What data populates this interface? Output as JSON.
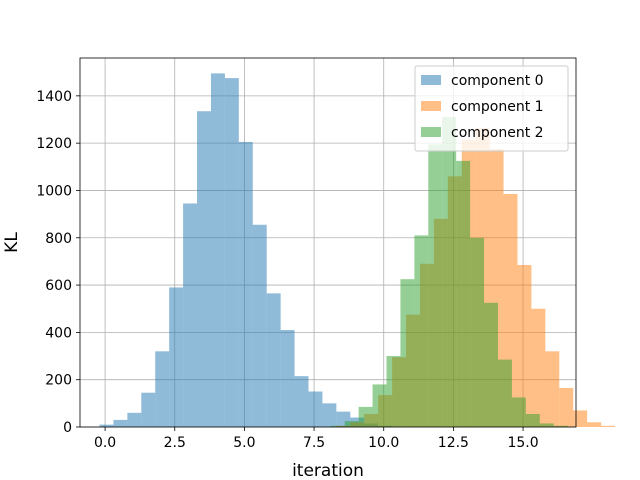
{
  "chart_data": {
    "type": "histogram",
    "xlabel": "iteration",
    "ylabel": "KL",
    "xlim": [
      -0.9,
      16.9
    ],
    "ylim": [
      0,
      1560
    ],
    "xticks": [
      0.0,
      2.5,
      5.0,
      7.5,
      10.0,
      12.5,
      15.0
    ],
    "xtick_labels": [
      "0.0",
      "2.5",
      "5.0",
      "7.5",
      "10.0",
      "12.5",
      "15.0"
    ],
    "yticks": [
      0,
      200,
      400,
      600,
      800,
      1000,
      1200,
      1400
    ],
    "ytick_labels": [
      "0",
      "200",
      "400",
      "600",
      "800",
      "1000",
      "1200",
      "1400"
    ],
    "grid": true,
    "legend_position": "top-right",
    "series": [
      {
        "name": "component 0",
        "color": "#1f77b4",
        "alpha": 0.5,
        "bin_start": -0.2,
        "bin_width": 0.5,
        "counts": [
          10,
          30,
          60,
          145,
          320,
          590,
          945,
          1335,
          1495,
          1475,
          1205,
          855,
          565,
          410,
          215,
          150,
          100,
          65,
          40,
          15,
          5,
          2
        ]
      },
      {
        "name": "component 1",
        "color": "#ff7f0e",
        "alpha": 0.5,
        "bin_start": 8.3,
        "bin_width": 0.5,
        "counts": [
          5,
          20,
          55,
          135,
          295,
          475,
          690,
          880,
          1060,
          1215,
          1265,
          1175,
          985,
          685,
          500,
          320,
          165,
          70,
          20,
          5
        ]
      },
      {
        "name": "component 2",
        "color": "#2ca02c",
        "alpha": 0.5,
        "bin_start": 8.1,
        "bin_width": 0.5,
        "counts": [
          5,
          25,
          85,
          180,
          300,
          625,
          810,
          1195,
          1310,
          1125,
          800,
          525,
          285,
          125,
          55,
          15,
          5
        ]
      }
    ]
  }
}
